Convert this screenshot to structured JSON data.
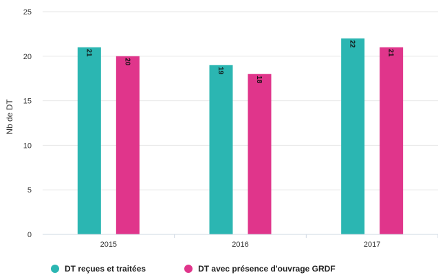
{
  "chart_data": {
    "type": "bar",
    "categories": [
      "2015",
      "2016",
      "2017"
    ],
    "series": [
      {
        "name": "DT reçues et traitées",
        "values": [
          21,
          19,
          22
        ],
        "color": "#2bb6b2"
      },
      {
        "name": "DT avec présence d'ouvrage GRDF",
        "values": [
          20,
          18,
          21
        ],
        "color": "#e0358b"
      }
    ],
    "ylabel": "Nb de DT",
    "xlabel": "",
    "ylim": [
      0,
      25
    ],
    "yticks": [
      0,
      5,
      10,
      15,
      20,
      25
    ],
    "data_labels": true,
    "grid": true,
    "legend": "bottom-left"
  }
}
